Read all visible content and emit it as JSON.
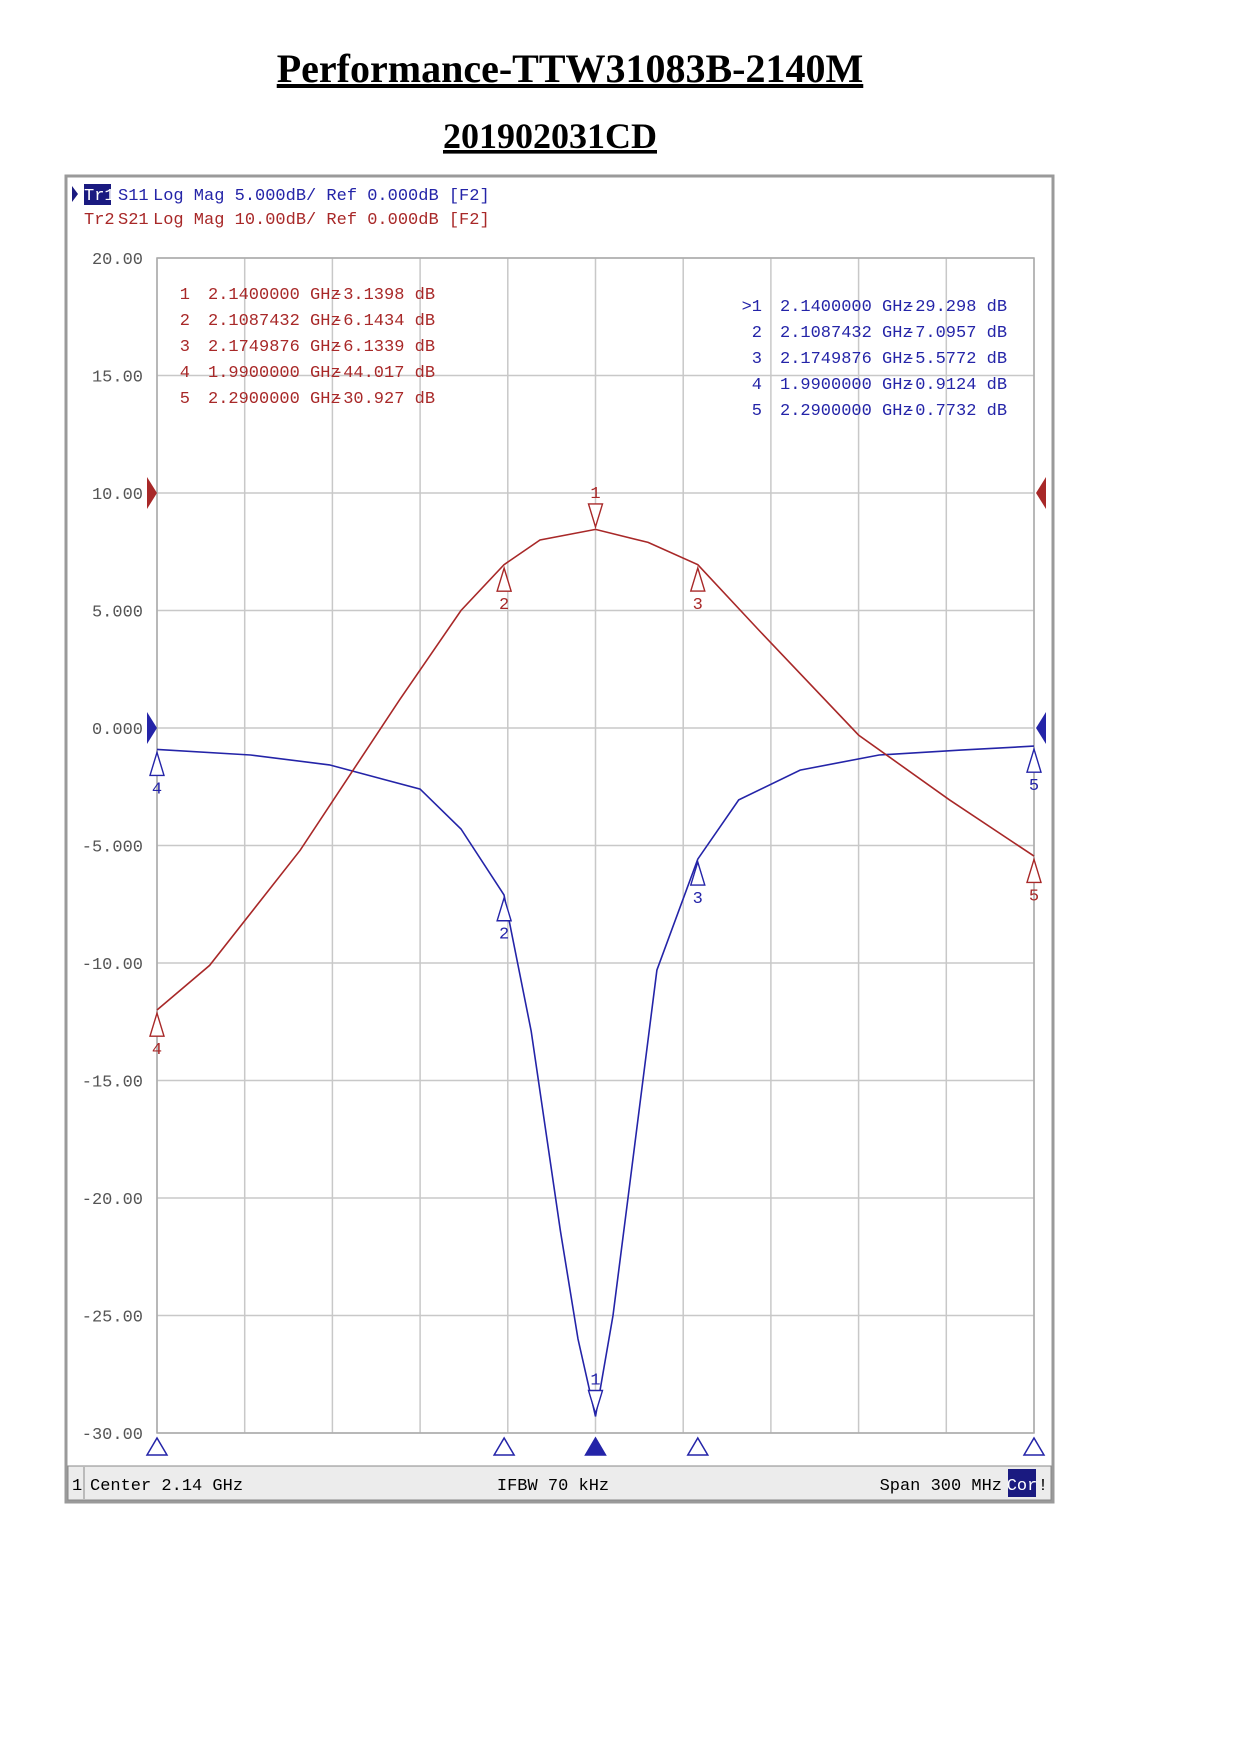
{
  "chart_data": {
    "type": "line",
    "title": "Performance-TTW31083B-2140M",
    "subtitle": "201902031CD",
    "xlim": [
      1.99,
      2.29
    ],
    "ylim": [
      -30,
      20
    ],
    "y2lim": [
      -80,
      20
    ],
    "yticks": [
      {
        "value": 20,
        "label": "20.00"
      },
      {
        "value": 15,
        "label": "15.00"
      },
      {
        "value": 10,
        "label": "10.00"
      },
      {
        "value": 5,
        "label": "5.000"
      },
      {
        "value": 0,
        "label": "0.000"
      },
      {
        "value": -5,
        "label": "-5.000"
      },
      {
        "value": -10,
        "label": "-10.00"
      },
      {
        "value": -15,
        "label": "-15.00"
      },
      {
        "value": -20,
        "label": "-20.00"
      },
      {
        "value": -25,
        "label": "-25.00"
      },
      {
        "value": -30,
        "label": "-30.00"
      }
    ],
    "grid": true,
    "footer": {
      "channel": "1",
      "left": "Center 2.14 GHz",
      "middle": "IFBW 70 kHz",
      "right": "Span 300 MHz",
      "cor": "Cor",
      "flag": "!"
    },
    "series": [
      {
        "trace": "Tr1",
        "name": "S11",
        "format": "Log Mag 5.000dB/ Ref 0.000dB [F2]",
        "color": "#2424a8",
        "ref": 0,
        "active": true,
        "x": [
          1.99,
          2.022,
          2.049,
          2.08,
          2.094,
          2.1087,
          2.118,
          2.128,
          2.134,
          2.14,
          2.146,
          2.151,
          2.161,
          2.175,
          2.189,
          2.21,
          2.237,
          2.265,
          2.29
        ],
        "values": [
          -0.91,
          -1.15,
          -1.57,
          -2.6,
          -4.3,
          -7.1,
          -12.9,
          -21.4,
          -26,
          -29.3,
          -25,
          -20.1,
          -10.3,
          -5.58,
          -3.06,
          -1.79,
          -1.15,
          -0.94,
          -0.77
        ],
        "markers": {
          "table_corner": "upper right",
          "ids": [
            "1",
            "2",
            "3",
            "4",
            "5"
          ],
          "table_ids": [
            ">1",
            "2",
            "3",
            "4",
            "5"
          ],
          "x": [
            2.14,
            2.1087432,
            2.1749876,
            1.99,
            2.29
          ],
          "x_labels": [
            "2.1400000 GHz",
            "2.1087432 GHz",
            "2.1749876 GHz",
            "1.9900000 GHz",
            "2.2900000 GHz"
          ],
          "values": [
            -29.298,
            -7.0957,
            -5.5772,
            -0.9124,
            -0.7732
          ],
          "value_labels": [
            "-29.298 dB",
            "-7.0957 dB",
            "-5.5772 dB",
            "-0.9124 dB",
            "-0.7732 dB"
          ]
        }
      },
      {
        "trace": "Tr2",
        "name": "S21",
        "format": "Log Mag 10.00dB/ Ref 0.000dB [F2]",
        "color": "#a82828",
        "ref": 0,
        "axis": "y2",
        "x": [
          1.99,
          2.008,
          2.039,
          2.073,
          2.094,
          2.1087,
          2.121,
          2.14,
          2.158,
          2.175,
          2.196,
          2.23,
          2.261,
          2.29
        ],
        "values": [
          -44.0,
          -40.2,
          -30.4,
          -17.6,
          -10,
          -6.1,
          -4.0,
          -3.1,
          -4.2,
          -6.1,
          -11.7,
          -20.6,
          -26.1,
          -30.9
        ],
        "markers": {
          "table_corner": "upper left",
          "ids": [
            "1",
            "2",
            "3",
            "4",
            "5"
          ],
          "x": [
            2.14,
            2.1087432,
            2.1749876,
            1.99,
            2.29
          ],
          "x_labels": [
            "2.1400000 GHz",
            "2.1087432 GHz",
            "2.1749876 GHz",
            "1.9900000 GHz",
            "2.2900000 GHz"
          ],
          "values": [
            -3.1398,
            -6.1434,
            -6.1339,
            -44.017,
            -30.927
          ],
          "value_labels": [
            "-3.1398 dB",
            "-6.1434 dB",
            "-6.1339 dB",
            "-44.017 dB",
            "-30.927 dB"
          ]
        }
      }
    ]
  }
}
